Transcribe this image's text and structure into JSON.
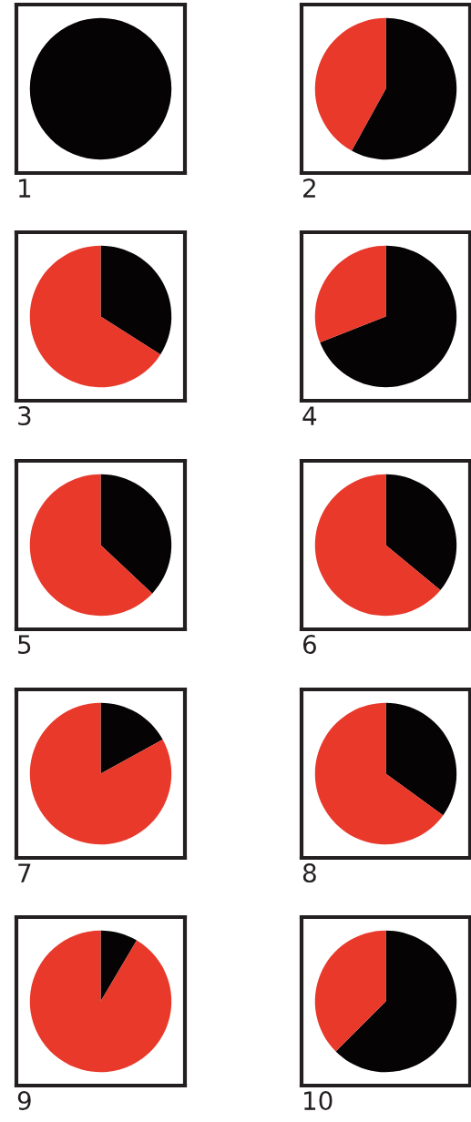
{
  "chart_data": [
    {
      "type": "pie",
      "title": "1",
      "categories": [
        null,
        null
      ],
      "values": [
        100,
        0
      ],
      "colors": [
        "#050304",
        "#e8392b"
      ]
    },
    {
      "type": "pie",
      "title": "2",
      "categories": [
        null,
        null
      ],
      "values": [
        58,
        42
      ],
      "colors": [
        "#050304",
        "#e8392b"
      ]
    },
    {
      "type": "pie",
      "title": "3",
      "categories": [
        null,
        null
      ],
      "values": [
        34,
        66
      ],
      "colors": [
        "#050304",
        "#e8392b"
      ]
    },
    {
      "type": "pie",
      "title": "4",
      "categories": [
        null,
        null
      ],
      "values": [
        69,
        31
      ],
      "colors": [
        "#050304",
        "#e8392b"
      ]
    },
    {
      "type": "pie",
      "title": "5",
      "categories": [
        null,
        null
      ],
      "values": [
        37,
        63
      ],
      "colors": [
        "#050304",
        "#e8392b"
      ]
    },
    {
      "type": "pie",
      "title": "6",
      "categories": [
        null,
        null
      ],
      "values": [
        36,
        64
      ],
      "colors": [
        "#050304",
        "#e8392b"
      ]
    },
    {
      "type": "pie",
      "title": "7",
      "categories": [
        null,
        null
      ],
      "values": [
        17,
        83
      ],
      "colors": [
        "#050304",
        "#e8392b"
      ]
    },
    {
      "type": "pie",
      "title": "8",
      "categories": [
        null,
        null
      ],
      "values": [
        35,
        65
      ],
      "colors": [
        "#050304",
        "#e8392b"
      ]
    },
    {
      "type": "pie",
      "title": "9",
      "categories": [
        null,
        null
      ],
      "values": [
        8.5,
        91.5
      ],
      "colors": [
        "#050304",
        "#e8392b"
      ]
    },
    {
      "type": "pie",
      "title": "10",
      "categories": [
        null,
        null
      ],
      "values": [
        62.5,
        37.5
      ],
      "colors": [
        "#050304",
        "#e8392b"
      ]
    }
  ]
}
